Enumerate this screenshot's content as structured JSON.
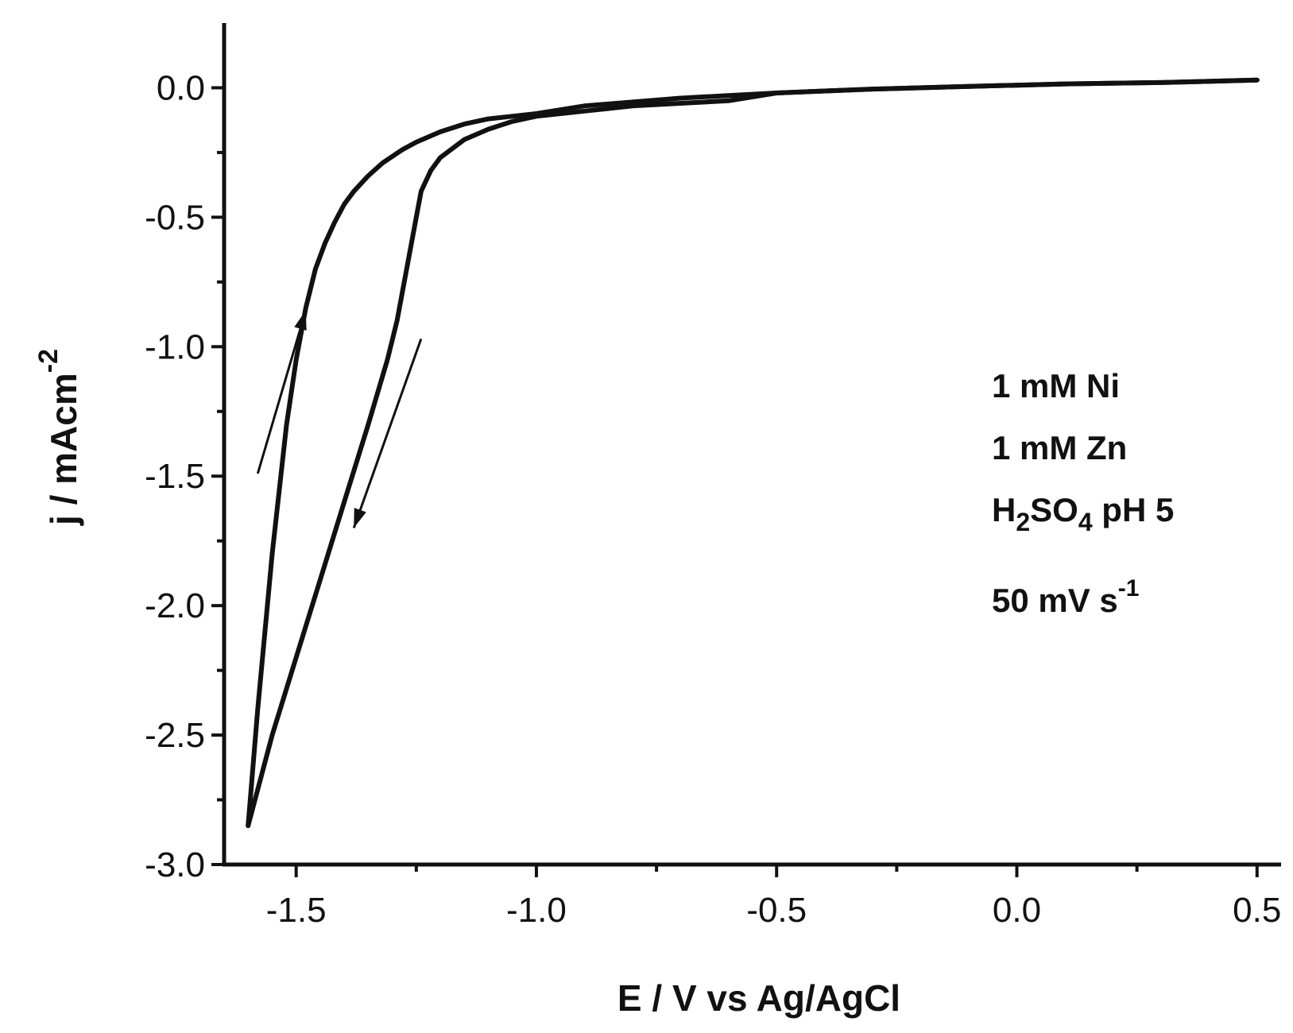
{
  "chart_data": {
    "type": "line",
    "title": "",
    "xlabel": "E / V vs Ag/AgCl",
    "ylabel": {
      "main": "j / mAcm",
      "sup": "-2"
    },
    "xlim": [
      -1.65,
      0.55
    ],
    "ylim": [
      -3.0,
      0.25
    ],
    "xticks": [
      {
        "value": -1.5,
        "label": "-1.5"
      },
      {
        "value": -1.0,
        "label": "-1.0"
      },
      {
        "value": -0.5,
        "label": "-0.5"
      },
      {
        "value": 0.0,
        "label": "0.0"
      },
      {
        "value": 0.5,
        "label": "0.5"
      }
    ],
    "xminor": [
      -1.25,
      -0.75,
      -0.25,
      0.25
    ],
    "yticks": [
      {
        "value": 0.0,
        "label": "0.0"
      },
      {
        "value": -0.5,
        "label": "-0.5"
      },
      {
        "value": -1.0,
        "label": "-1.0"
      },
      {
        "value": -1.5,
        "label": "-1.5"
      },
      {
        "value": -2.0,
        "label": "-2.0"
      },
      {
        "value": -2.5,
        "label": "-2.5"
      },
      {
        "value": -3.0,
        "label": "-3.0"
      }
    ],
    "yminor": [
      -0.25,
      -0.75,
      -1.25,
      -1.75,
      -2.25,
      -2.75
    ],
    "grid": false,
    "series": [
      {
        "x": [
          0.5,
          0.3,
          0.1,
          -0.1,
          -0.3,
          -0.5,
          -0.6,
          -0.7,
          -0.8,
          -0.9,
          -1.0,
          -1.05,
          -1.1,
          -1.15,
          -1.2,
          -1.22,
          -1.24,
          -1.25,
          -1.27,
          -1.29,
          -1.31,
          -1.35,
          -1.4,
          -1.45,
          -1.5,
          -1.55,
          -1.6
        ],
        "y": [
          0.03,
          0.02,
          0.015,
          0.005,
          -0.005,
          -0.02,
          -0.05,
          -0.06,
          -0.07,
          -0.09,
          -0.11,
          -0.13,
          -0.16,
          -0.2,
          -0.27,
          -0.32,
          -0.4,
          -0.5,
          -0.7,
          -0.9,
          -1.05,
          -1.3,
          -1.6,
          -1.9,
          -2.2,
          -2.5,
          -2.85
        ]
      },
      {
        "x": [
          -1.6,
          -1.58,
          -1.55,
          -1.52,
          -1.5,
          -1.48,
          -1.46,
          -1.44,
          -1.42,
          -1.4,
          -1.38,
          -1.35,
          -1.32,
          -1.28,
          -1.25,
          -1.2,
          -1.15,
          -1.1,
          -1.05,
          -1.0,
          -0.9,
          -0.8,
          -0.7,
          -0.6,
          -0.5,
          -0.3,
          -0.1,
          0.1,
          0.3,
          0.5
        ],
        "y": [
          -2.85,
          -2.4,
          -1.8,
          -1.3,
          -1.05,
          -0.85,
          -0.7,
          -0.6,
          -0.52,
          -0.45,
          -0.4,
          -0.34,
          -0.29,
          -0.24,
          -0.21,
          -0.17,
          -0.14,
          -0.12,
          -0.11,
          -0.1,
          -0.07,
          -0.055,
          -0.04,
          -0.03,
          -0.02,
          -0.005,
          0.005,
          0.015,
          0.02,
          0.03
        ]
      }
    ],
    "arrows": [
      {
        "direction": "up",
        "from": [
          -1.58,
          -1.49
        ],
        "to": [
          -1.48,
          -0.86
        ]
      },
      {
        "direction": "down",
        "from": [
          -1.24,
          -0.97
        ],
        "to": [
          -1.38,
          -1.7
        ]
      }
    ],
    "annotations": [
      {
        "type": "plain",
        "text": "1 mM Ni"
      },
      {
        "type": "plain",
        "text": "1 mM Zn"
      },
      {
        "type": "formula",
        "parts": [
          "H",
          "2",
          "SO",
          "4",
          " pH 5"
        ]
      },
      {
        "type": "unit",
        "main": "50 mV s",
        "sup": "-1"
      }
    ]
  }
}
